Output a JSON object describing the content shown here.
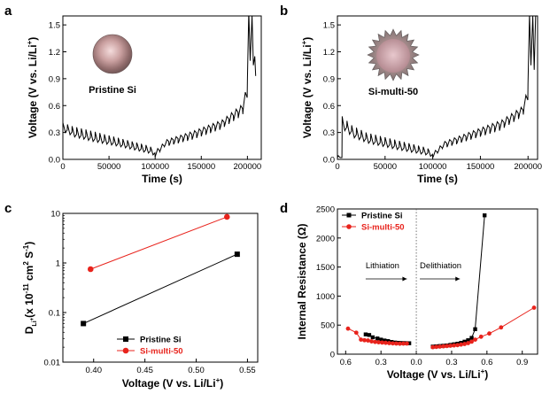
{
  "chart_data": [
    {
      "panel": "a",
      "type": "line",
      "xlabel": "Time (s)",
      "ylabel": "Voltage (V vs. Li/Li+)",
      "xlim": [
        0,
        215000
      ],
      "ylim": [
        0,
        1.6
      ],
      "xticks": [
        0,
        50000,
        100000,
        150000,
        200000
      ],
      "yticks": [
        0.0,
        0.3,
        0.6,
        0.9,
        1.2,
        1.5
      ],
      "particle_label": "Pristine Si",
      "series": [
        {
          "color": "#000000",
          "envelope_top": [
            [
              0,
              0.41
            ],
            [
              10000,
              0.37
            ],
            [
              30000,
              0.32
            ],
            [
              60000,
              0.24
            ],
            [
              90000,
              0.16
            ],
            [
              100000,
              0.12
            ],
            [
              110000,
              0.22
            ],
            [
              140000,
              0.32
            ],
            [
              170000,
              0.44
            ],
            [
              190000,
              0.6
            ],
            [
              200000,
              0.9
            ]
          ],
          "envelope_bottom": [
            [
              0,
              0.3
            ],
            [
              10000,
              0.25
            ],
            [
              30000,
              0.2
            ],
            [
              60000,
              0.14
            ],
            [
              90000,
              0.07
            ],
            [
              100000,
              0.03
            ],
            [
              110000,
              0.14
            ],
            [
              140000,
              0.22
            ],
            [
              170000,
              0.33
            ],
            [
              190000,
              0.46
            ],
            [
              200000,
              0.55
            ]
          ],
          "pulse_period": 5000,
          "tail": [
            [
              200000,
              0.9
            ],
            [
              201500,
              1.65
            ],
            [
              203000,
              1.1
            ],
            [
              205000,
              1.6
            ],
            [
              206500,
              1.05
            ],
            [
              208000,
              1.15
            ],
            [
              209000,
              0.93
            ]
          ]
        }
      ]
    },
    {
      "panel": "b",
      "type": "line",
      "xlabel": "Time (s)",
      "ylabel": "Voltage (V vs. Li/Li+)",
      "xlim": [
        0,
        210000
      ],
      "ylim": [
        0,
        1.6
      ],
      "xticks": [
        0,
        50000,
        100000,
        150000,
        200000
      ],
      "yticks": [
        0.0,
        0.3,
        0.6,
        0.9,
        1.2,
        1.5
      ],
      "particle_label": "Si-multi-50",
      "series": [
        {
          "color": "#000000",
          "envelope_top": [
            [
              0,
              0.02
            ],
            [
              1500,
              0.62
            ],
            [
              5000,
              0.48
            ],
            [
              15000,
              0.38
            ],
            [
              30000,
              0.3
            ],
            [
              60000,
              0.22
            ],
            [
              90000,
              0.14
            ],
            [
              100000,
              0.1
            ],
            [
              110000,
              0.2
            ],
            [
              140000,
              0.32
            ],
            [
              170000,
              0.44
            ],
            [
              190000,
              0.58
            ],
            [
              200000,
              0.85
            ]
          ],
          "envelope_bottom": [
            [
              0,
              0.02
            ],
            [
              1500,
              0.5
            ],
            [
              5000,
              0.32
            ],
            [
              15000,
              0.24
            ],
            [
              30000,
              0.18
            ],
            [
              60000,
              0.11
            ],
            [
              90000,
              0.05
            ],
            [
              100000,
              0.02
            ],
            [
              110000,
              0.12
            ],
            [
              140000,
              0.22
            ],
            [
              170000,
              0.32
            ],
            [
              190000,
              0.45
            ],
            [
              200000,
              0.55
            ]
          ],
          "pulse_period": 5000,
          "tail": [
            [
              200000,
              0.85
            ],
            [
              201500,
              1.62
            ],
            [
              203000,
              1.05
            ],
            [
              205000,
              1.6
            ],
            [
              206500,
              1.0
            ],
            [
              208000,
              1.6
            ]
          ]
        }
      ]
    },
    {
      "panel": "c",
      "type": "scatter",
      "xlabel": "Voltage (V vs. Li/Li+)",
      "ylabel": "DLi+ (x 10-11 cm2 S-1)",
      "xlim": [
        0.37,
        0.56
      ],
      "ylim": [
        0.01,
        10
      ],
      "yscale": "log",
      "xticks": [
        0.4,
        0.45,
        0.5,
        0.55
      ],
      "yticks": [
        0.01,
        0.1,
        1,
        10
      ],
      "legend_position": "bottom-right",
      "series": [
        {
          "name": "Pristine Si",
          "color": "#000000",
          "marker": "square",
          "x": [
            0.39,
            0.54
          ],
          "y": [
            0.06,
            1.5
          ]
        },
        {
          "name": "Si-multi-50",
          "color": "#e8231c",
          "marker": "circle",
          "x": [
            0.397,
            0.53
          ],
          "y": [
            0.75,
            8.5
          ]
        }
      ]
    },
    {
      "panel": "d",
      "type": "line",
      "xlabel": "Voltage (V vs. Li/Li+)",
      "ylabel": "Internal Resistance (Ω)",
      "xlim": [
        -0.67,
        1.03
      ],
      "ylim": [
        0,
        2500
      ],
      "xticks": [
        -0.6,
        -0.3,
        0.0,
        0.3,
        0.6,
        0.9
      ],
      "xticklabels": [
        "0.6",
        "0.3",
        "0.0",
        "0.3",
        "0.6",
        "0.9"
      ],
      "yticks": [
        0,
        500,
        1000,
        1500,
        2000,
        2500
      ],
      "legend_position": "top-left",
      "annotations": [
        "Lithiation",
        "Delithiation"
      ],
      "series": [
        {
          "name": "Pristine Si",
          "color": "#000000",
          "marker": "square",
          "lith": [
            [
              -0.43,
              340
            ],
            [
              -0.4,
              330
            ],
            [
              -0.37,
              290
            ],
            [
              -0.33,
              270
            ],
            [
              -0.3,
              250
            ],
            [
              -0.27,
              235
            ],
            [
              -0.24,
              225
            ],
            [
              -0.21,
              210
            ],
            [
              -0.18,
              200
            ],
            [
              -0.15,
              195
            ],
            [
              -0.12,
              192
            ],
            [
              -0.09,
              190
            ],
            [
              -0.06,
              188
            ]
          ],
          "delith": [
            [
              0.14,
              130
            ],
            [
              0.17,
              135
            ],
            [
              0.2,
              140
            ],
            [
              0.23,
              145
            ],
            [
              0.26,
              150
            ],
            [
              0.29,
              160
            ],
            [
              0.32,
              170
            ],
            [
              0.35,
              180
            ],
            [
              0.38,
              195
            ],
            [
              0.41,
              215
            ],
            [
              0.44,
              240
            ],
            [
              0.47,
              280
            ],
            [
              0.5,
              430
            ],
            [
              0.58,
              2390
            ]
          ]
        },
        {
          "name": "Si-multi-50",
          "color": "#e8231c",
          "marker": "circle",
          "lith": [
            [
              -0.58,
              440
            ],
            [
              -0.51,
              370
            ],
            [
              -0.47,
              250
            ],
            [
              -0.44,
              240
            ],
            [
              -0.41,
              235
            ],
            [
              -0.38,
              220
            ],
            [
              -0.35,
              210
            ],
            [
              -0.32,
              205
            ],
            [
              -0.29,
              200
            ],
            [
              -0.26,
              195
            ],
            [
              -0.23,
              190
            ],
            [
              -0.2,
              185
            ],
            [
              -0.17,
              183
            ],
            [
              -0.14,
              180
            ],
            [
              -0.11,
              182
            ],
            [
              -0.08,
              183
            ]
          ],
          "delith": [
            [
              0.14,
              120
            ],
            [
              0.17,
              125
            ],
            [
              0.2,
              130
            ],
            [
              0.23,
              135
            ],
            [
              0.26,
              140
            ],
            [
              0.29,
              145
            ],
            [
              0.32,
              150
            ],
            [
              0.35,
              155
            ],
            [
              0.38,
              165
            ],
            [
              0.41,
              175
            ],
            [
              0.44,
              190
            ],
            [
              0.47,
              215
            ],
            [
              0.5,
              250
            ],
            [
              0.55,
              300
            ],
            [
              0.62,
              355
            ],
            [
              0.72,
              460
            ],
            [
              1.0,
              800
            ]
          ]
        }
      ]
    }
  ]
}
